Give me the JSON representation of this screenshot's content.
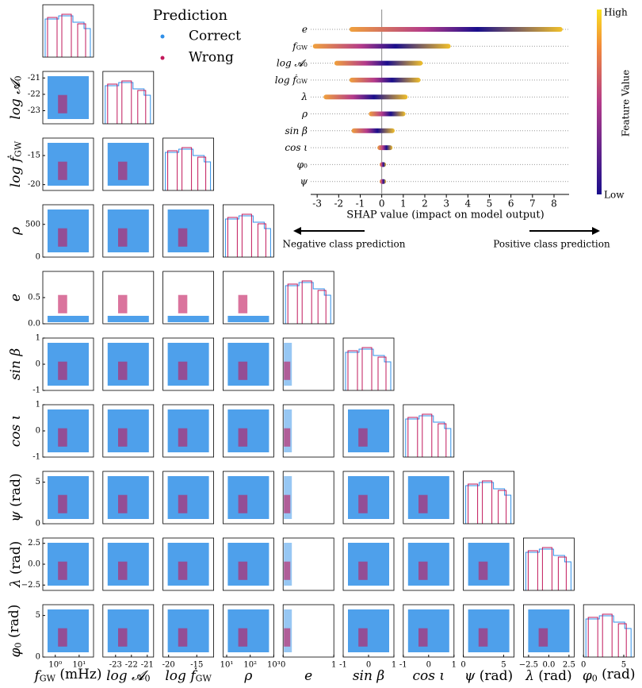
{
  "legend": {
    "title": "Prediction",
    "items": [
      {
        "label": "Correct",
        "color": "#2f8fe8"
      },
      {
        "label": "Wrong",
        "color": "#c2185b"
      }
    ]
  },
  "corner": {
    "params": [
      {
        "label": {
          "t": "f",
          "sub": "GW",
          "after": " (mHz)"
        },
        "xlim": [
          0.3,
          40
        ],
        "xlog": true,
        "xticks": [
          {
            "value": 1,
            "label": "10⁰"
          },
          {
            "value": 10,
            "label": "10¹"
          }
        ]
      },
      {
        "label": {
          "t": "log 𝓐",
          "sub": "0"
        },
        "xlim": [
          -23.8,
          -20.6
        ],
        "ylim": [
          -23.8,
          -20.6
        ],
        "xticks": [
          -23,
          -22,
          -21
        ],
        "yticks": [
          -21,
          -22,
          -23
        ]
      },
      {
        "label": {
          "t": "log ḟ",
          "sub": "GW"
        },
        "xlim": [
          -21,
          -12
        ],
        "ylim": [
          -21,
          -12
        ],
        "xticks": [
          -20,
          -15
        ],
        "yticks": [
          -15,
          -20
        ]
      },
      {
        "label": {
          "t": "ρ"
        },
        "xlim": [
          7,
          1000
        ],
        "xlog": true,
        "ylim": [
          0,
          800
        ],
        "xticks": [
          {
            "value": 10,
            "label": "10¹"
          },
          {
            "value": 100,
            "label": "10²"
          },
          {
            "value": 1000,
            "label": "10³"
          }
        ],
        "yticks": [
          0,
          500
        ]
      },
      {
        "label": {
          "t": "e"
        },
        "xlim": [
          0,
          1
        ],
        "ylim": [
          0,
          1
        ],
        "xticks": [
          0,
          1
        ],
        "yticks": [
          {
            "value": 0,
            "label": "0.0"
          },
          {
            "value": 0.5,
            "label": "0.5"
          }
        ]
      },
      {
        "label": {
          "t": "sin β"
        },
        "xlim": [
          -1,
          1
        ],
        "ylim": [
          -1,
          1
        ],
        "xticks": [
          -1,
          0,
          1
        ],
        "yticks": [
          1,
          0,
          -1
        ]
      },
      {
        "label": {
          "t": "cos ι"
        },
        "xlim": [
          -1,
          1
        ],
        "ylim": [
          -1,
          1
        ],
        "xticks": [
          -1,
          0,
          1
        ],
        "yticks": [
          1,
          0,
          -1
        ]
      },
      {
        "label": {
          "t": "ψ",
          "after": " (rad)"
        },
        "xlim": [
          0,
          6.3
        ],
        "ylim": [
          0,
          6.3
        ],
        "xticks": [
          0,
          5
        ],
        "yticks": [
          0,
          5
        ]
      },
      {
        "label": {
          "t": "λ",
          "after": " (rad)"
        },
        "xlim": [
          -3.14,
          3.14
        ],
        "ylim": [
          -3.14,
          3.14
        ],
        "xticks": [
          {
            "value": -2.5,
            "label": "−2.5"
          },
          {
            "value": 0,
            "label": "0.0"
          },
          {
            "value": 2.5,
            "label": "2.5"
          }
        ],
        "yticks": [
          {
            "value": 2.5,
            "label": "2.5"
          },
          {
            "value": 0,
            "label": "0.0"
          },
          {
            "value": -2.5,
            "label": "−2.5"
          }
        ]
      },
      {
        "label": {
          "t": "φ",
          "sub": "0",
          "after": " (rad)"
        },
        "xlim": [
          0,
          6.3
        ],
        "ylim": [
          0,
          6.3
        ],
        "xticks": [
          0,
          5
        ],
        "yticks": [
          0,
          5
        ]
      }
    ]
  },
  "chart_data": {
    "type": "shap-beeswarm",
    "xlabel": "SHAP value (impact on model output)",
    "xlim": [
      -3.3,
      8.7
    ],
    "xticks": [
      -3,
      -2,
      -1,
      0,
      1,
      2,
      3,
      4,
      5,
      6,
      7,
      8
    ],
    "features": [
      {
        "label": {
          "t": "e"
        },
        "spread": [
          -1.5,
          8.4
        ]
      },
      {
        "label": {
          "t": "f",
          "sub": "GW"
        },
        "spread": [
          -3.2,
          3.2
        ]
      },
      {
        "label": {
          "t": "log 𝓐",
          "sub": "0"
        },
        "spread": [
          -2.2,
          1.9
        ]
      },
      {
        "label": {
          "t": "log ḟ",
          "sub": "GW"
        },
        "spread": [
          -1.5,
          1.8
        ]
      },
      {
        "label": {
          "t": "λ"
        },
        "spread": [
          -2.7,
          1.2
        ]
      },
      {
        "label": {
          "t": "ρ"
        },
        "spread": [
          -0.6,
          1.1
        ]
      },
      {
        "label": {
          "t": "sin β"
        },
        "spread": [
          -1.4,
          0.6
        ]
      },
      {
        "label": {
          "t": "cos ι"
        },
        "spread": [
          -0.2,
          0.5
        ]
      },
      {
        "label": {
          "t": "φ",
          "sub": "0"
        },
        "spread": [
          -0.1,
          0.2
        ]
      },
      {
        "label": {
          "t": "ψ"
        },
        "spread": [
          -0.1,
          0.2
        ]
      }
    ],
    "colorbar": {
      "title": "Feature Value",
      "high": "High",
      "low": "Low"
    },
    "arrows": {
      "negative": "Negative class prediction",
      "positive": "Positive class prediction"
    }
  }
}
